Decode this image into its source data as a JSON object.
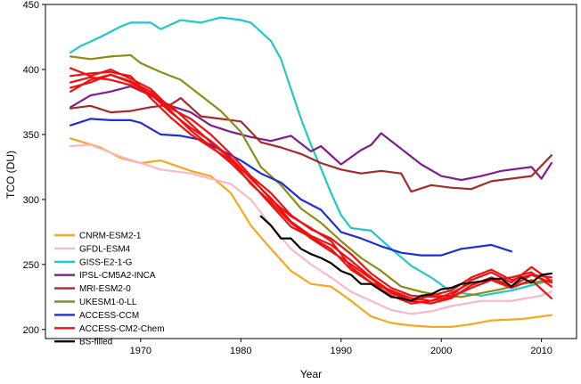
{
  "chart_data": {
    "type": "line",
    "xlabel": "Year",
    "ylabel": "TCO (DU)",
    "xlim": [
      1960.5,
      2013.5
    ],
    "ylim": [
      193,
      450
    ],
    "xticks": [
      1970,
      1980,
      1990,
      2000,
      2010
    ],
    "yticks": [
      200,
      250,
      300,
      350,
      400,
      450
    ],
    "grid": false,
    "legend_position": "bottom-left",
    "series": [
      {
        "name": "CNRM-ESM2-1",
        "color": "#f5a81f",
        "width": 2.2,
        "x": [
          1963,
          1966,
          1968,
          1970,
          1972,
          1975,
          1977,
          1979,
          1981,
          1983,
          1985,
          1987,
          1989,
          1991,
          1993,
          1995,
          1997,
          1999,
          2001,
          2003,
          2005,
          2008,
          2011
        ],
        "y": [
          347,
          340,
          332,
          328,
          330,
          322,
          318,
          305,
          280,
          262,
          245,
          235,
          233,
          222,
          210,
          205,
          203,
          202,
          202,
          204,
          207,
          208,
          211
        ]
      },
      {
        "name": "GFDL-ESM4",
        "color": "#f7b9c9",
        "width": 2.2,
        "x": [
          1963,
          1965,
          1968,
          1970,
          1972,
          1975,
          1977,
          1979,
          1981,
          1983,
          1985,
          1987,
          1989,
          1991,
          1993,
          1995,
          1997,
          1999,
          2001,
          2004,
          2007,
          2010,
          2011
        ],
        "y": [
          341,
          342,
          333,
          328,
          323,
          320,
          316,
          312,
          300,
          280,
          262,
          250,
          240,
          229,
          222,
          215,
          212,
          214,
          218,
          222,
          222,
          226,
          229
        ]
      },
      {
        "name": "GISS-E2-1-G",
        "color": "#20c8c8",
        "width": 2.2,
        "x": [
          1963,
          1964,
          1966,
          1968,
          1969,
          1971,
          1972,
          1974,
          1976,
          1978,
          1980,
          1981,
          1983,
          1984,
          1985,
          1986,
          1987,
          1988,
          1989,
          1990,
          1991,
          1993,
          1995,
          1997,
          1999,
          2001,
          2004,
          2007,
          2010,
          2011
        ],
        "y": [
          413,
          418,
          425,
          433,
          436,
          436,
          431,
          438,
          436,
          440,
          438,
          436,
          422,
          408,
          385,
          362,
          342,
          324,
          305,
          288,
          278,
          276,
          262,
          249,
          240,
          229,
          226,
          230,
          236,
          238
        ]
      },
      {
        "name": "IPSL-CM5A2-INCA",
        "color": "#7e1e8c",
        "width": 2.2,
        "x": [
          1963,
          1965,
          1967,
          1969,
          1971,
          1973,
          1975,
          1977,
          1979,
          1981,
          1983,
          1985,
          1987,
          1988,
          1990,
          1992,
          1993,
          1994,
          1996,
          1998,
          2000,
          2002,
          2004,
          2006,
          2009,
          2010,
          2011
        ],
        "y": [
          371,
          380,
          383,
          387,
          380,
          372,
          367,
          357,
          352,
          348,
          345,
          349,
          337,
          341,
          327,
          338,
          342,
          351,
          339,
          327,
          318,
          315,
          318,
          322,
          325,
          316,
          328
        ]
      },
      {
        "name": "MRI-ESM2-0",
        "color": "#a52a2a",
        "width": 2.2,
        "x": [
          1963,
          1965,
          1967,
          1969,
          1971,
          1973,
          1974,
          1976,
          1978,
          1980,
          1982,
          1984,
          1986,
          1988,
          1990,
          1992,
          1994,
          1996,
          1997,
          1999,
          2001,
          2003,
          2005,
          2007,
          2009,
          2011
        ],
        "y": [
          370,
          372,
          367,
          368,
          371,
          373,
          378,
          364,
          362,
          360,
          344,
          340,
          335,
          328,
          323,
          320,
          322,
          320,
          306,
          311,
          309,
          308,
          314,
          316,
          318,
          334
        ]
      },
      {
        "name": "UKESM1-0-LL",
        "color": "#8c8c14",
        "width": 2.2,
        "x": [
          1963,
          1965,
          1967,
          1969,
          1970,
          1972,
          1974,
          1976,
          1978,
          1980,
          1982,
          1984,
          1986,
          1988,
          1990,
          1992,
          1994,
          1996,
          1998,
          2000,
          2002,
          2004,
          2006,
          2008,
          2011
        ],
        "y": [
          410,
          408,
          410,
          411,
          405,
          398,
          392,
          380,
          368,
          352,
          325,
          311,
          293,
          282,
          268,
          255,
          245,
          233,
          229,
          226,
          225,
          228,
          231,
          235,
          238
        ]
      },
      {
        "name": "ACCESS-CCM",
        "color": "#1f2ed6",
        "width": 2.2,
        "x": [
          1963,
          1965,
          1967,
          1969,
          1970,
          1972,
          1974,
          1976,
          1978,
          1980,
          1982,
          1984,
          1986,
          1988,
          1990,
          1992,
          1994,
          1996,
          1998,
          2000,
          2002,
          2004,
          2005,
          2007
        ],
        "y": [
          357,
          362,
          361,
          361,
          359,
          350,
          349,
          346,
          338,
          330,
          320,
          313,
          300,
          292,
          275,
          270,
          264,
          259,
          257,
          257,
          262,
          264,
          265,
          260
        ]
      },
      {
        "name": "ACCESS-CM2-Chem",
        "color": "#ee1111",
        "width": 2.2,
        "x": [
          1963,
          1965,
          1967,
          1969,
          1971,
          1973,
          1975,
          1977,
          1979,
          1981,
          1983,
          1985,
          1987,
          1989,
          1991,
          1993,
          1995,
          1997,
          1999,
          2001,
          2003,
          2005,
          2007,
          2009,
          2011
        ],
        "y": [
          401,
          395,
          400,
          393,
          385,
          370,
          362,
          350,
          335,
          318,
          305,
          288,
          277,
          270,
          258,
          243,
          232,
          226,
          225,
          226,
          238,
          244,
          236,
          248,
          237
        ]
      },
      {
        "name": "",
        "color": "#ee1111",
        "width": 2.2,
        "x": [
          1963,
          1965,
          1967,
          1969,
          1971,
          1973,
          1975,
          1977,
          1979,
          1981,
          1983,
          1985,
          1987,
          1989,
          1991,
          1993,
          1995,
          1997,
          1999,
          2001,
          2003,
          2005,
          2007,
          2009,
          2011
        ],
        "y": [
          383,
          392,
          396,
          390,
          381,
          367,
          355,
          345,
          332,
          316,
          301,
          283,
          272,
          265,
          253,
          240,
          229,
          222,
          220,
          224,
          234,
          240,
          233,
          242,
          236
        ]
      },
      {
        "name": "",
        "color": "#ee1111",
        "width": 2.2,
        "x": [
          1963,
          1965,
          1967,
          1969,
          1971,
          1973,
          1975,
          1977,
          1979,
          1981,
          1983,
          1985,
          1987,
          1989,
          1991,
          1993,
          1995,
          1997,
          1999,
          2001,
          2003,
          2005,
          2007,
          2009,
          2011
        ],
        "y": [
          395,
          397,
          398,
          395,
          378,
          363,
          350,
          340,
          330,
          317,
          300,
          287,
          278,
          268,
          248,
          236,
          230,
          224,
          222,
          228,
          236,
          238,
          232,
          238,
          224
        ]
      },
      {
        "name": "",
        "color": "#ee1111",
        "width": 2.2,
        "x": [
          1963,
          1965,
          1967,
          1969,
          1971,
          1973,
          1975,
          1977,
          1979,
          1981,
          1983,
          1985,
          1987,
          1989,
          1991,
          1993,
          1995,
          1997,
          1999,
          2001,
          2003,
          2005,
          2007,
          2009,
          2011
        ],
        "y": [
          390,
          394,
          392,
          388,
          380,
          372,
          358,
          344,
          331,
          312,
          298,
          282,
          270,
          260,
          250,
          239,
          228,
          222,
          226,
          230,
          240,
          246,
          238,
          242,
          240
        ]
      },
      {
        "name": "",
        "color": "#ee1111",
        "width": 2.2,
        "x": [
          1963,
          1965,
          1967,
          1969,
          1971,
          1973,
          1975,
          1977,
          1979,
          1981,
          1983,
          1985,
          1987,
          1989,
          1991,
          1993,
          1995,
          1997,
          1999,
          2001,
          2003,
          2005,
          2007,
          2009,
          2011
        ],
        "y": [
          386,
          390,
          396,
          391,
          383,
          368,
          353,
          341,
          328,
          313,
          296,
          279,
          271,
          262,
          246,
          236,
          226,
          220,
          222,
          225,
          232,
          238,
          240,
          244,
          233
        ]
      },
      {
        "name": "BS-filled",
        "color": "#000000",
        "width": 2.2,
        "x": [
          1982,
          1983,
          1984,
          1985,
          1986,
          1987,
          1988,
          1989,
          1990,
          1991,
          1992,
          1993,
          1994,
          1995,
          1996,
          1997,
          1998,
          1999,
          2000,
          2001,
          2002,
          2003,
          2004,
          2005,
          2006,
          2007,
          2008,
          2009,
          2010,
          2011
        ],
        "y": [
          287,
          280,
          270,
          270,
          262,
          258,
          255,
          251,
          245,
          242,
          235,
          235,
          230,
          225,
          224,
          222,
          226,
          227,
          231,
          232,
          235,
          236,
          237,
          239,
          239,
          233,
          240,
          236,
          242,
          243
        ]
      }
    ]
  }
}
